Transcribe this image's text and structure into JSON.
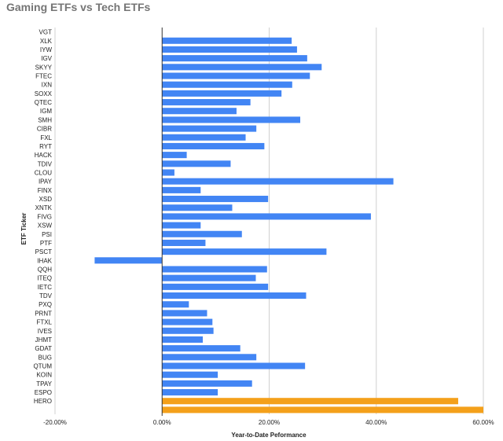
{
  "chart_data": {
    "type": "bar",
    "orientation": "horizontal",
    "title": "Gaming ETFs vs Tech ETFs",
    "xlabel": "Year-to-Date Peformance",
    "ylabel": "ETF Ticker",
    "xlim": [
      -20,
      60
    ],
    "x_ticks": [
      "-20.00%",
      "0.00%",
      "20.00%",
      "40.00%",
      "60.00%"
    ],
    "grid": true,
    "legend": "none",
    "colors": {
      "tech": "#4285F4",
      "gaming": "#F4A01A",
      "grid": "#d0d0d0",
      "zero_line": "#333333"
    },
    "categories": [
      "VGT",
      "XLK",
      "IYW",
      "IGV",
      "SKYY",
      "FTEC",
      "IXN",
      "SOXX",
      "QTEC",
      "IGM",
      "SMH",
      "CIBR",
      "FXL",
      "RYT",
      "HACK",
      "TDIV",
      "CLOU",
      "IPAY",
      "FINX",
      "XSD",
      "XNTK",
      "FIVG",
      "XSW",
      "PSI",
      "PTF",
      "PSCT",
      "IHAK",
      "QQH",
      "ITEQ",
      "IETC",
      "TDV",
      "PXQ",
      "PRNT",
      "FTXL",
      "IVES",
      "JHMT",
      "GDAT",
      "BUG",
      "QTUM",
      "KOIN",
      "TPAY",
      "ESPO",
      "HERO",
      ""
    ],
    "values": [
      0,
      24.2,
      25.2,
      27.1,
      29.8,
      27.6,
      24.3,
      22.3,
      16.5,
      13.9,
      25.8,
      17.6,
      15.6,
      19.1,
      4.6,
      12.8,
      2.3,
      43.2,
      7.2,
      19.8,
      13.1,
      39.0,
      7.2,
      14.9,
      8.1,
      30.7,
      -12.6,
      19.6,
      17.5,
      19.8,
      26.9,
      5.0,
      8.4,
      9.4,
      9.6,
      7.6,
      14.6,
      17.6,
      26.7,
      10.4,
      16.8,
      10.4,
      55.3,
      60.0
    ],
    "bar_color_group": [
      "tech",
      "tech",
      "tech",
      "tech",
      "tech",
      "tech",
      "tech",
      "tech",
      "tech",
      "tech",
      "tech",
      "tech",
      "tech",
      "tech",
      "tech",
      "tech",
      "tech",
      "tech",
      "tech",
      "tech",
      "tech",
      "tech",
      "tech",
      "tech",
      "tech",
      "tech",
      "tech",
      "tech",
      "tech",
      "tech",
      "tech",
      "tech",
      "tech",
      "tech",
      "tech",
      "tech",
      "tech",
      "tech",
      "tech",
      "tech",
      "tech",
      "tech",
      "gaming",
      "gaming"
    ]
  }
}
